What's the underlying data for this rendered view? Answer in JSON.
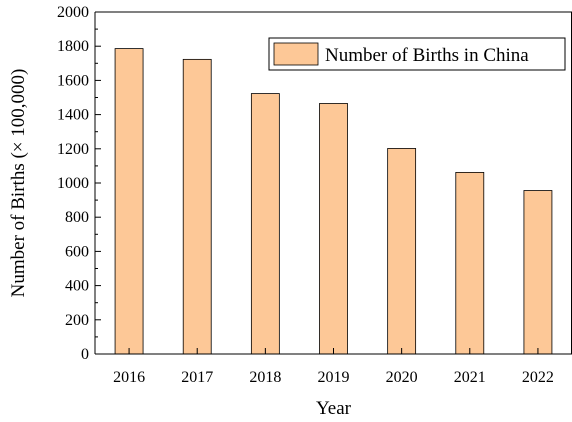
{
  "chart_data": {
    "type": "bar",
    "categories": [
      "2016",
      "2017",
      "2018",
      "2019",
      "2020",
      "2021",
      "2022"
    ],
    "series": [
      {
        "name": "Number of Births in China",
        "values": [
          1786,
          1723,
          1523,
          1465,
          1202,
          1062,
          956
        ]
      }
    ],
    "xlabel": "Year",
    "ylabel": "Number of Births (× 100,000)",
    "ylim": [
      0,
      2000
    ],
    "yticks": [
      0,
      200,
      400,
      600,
      800,
      1000,
      1200,
      1400,
      1600,
      1800,
      2000
    ],
    "grid": false,
    "legend_position": "top-right",
    "colors": {
      "bar_fill": "#FDC897",
      "bar_stroke": "#000000",
      "axis": "#000000"
    }
  }
}
